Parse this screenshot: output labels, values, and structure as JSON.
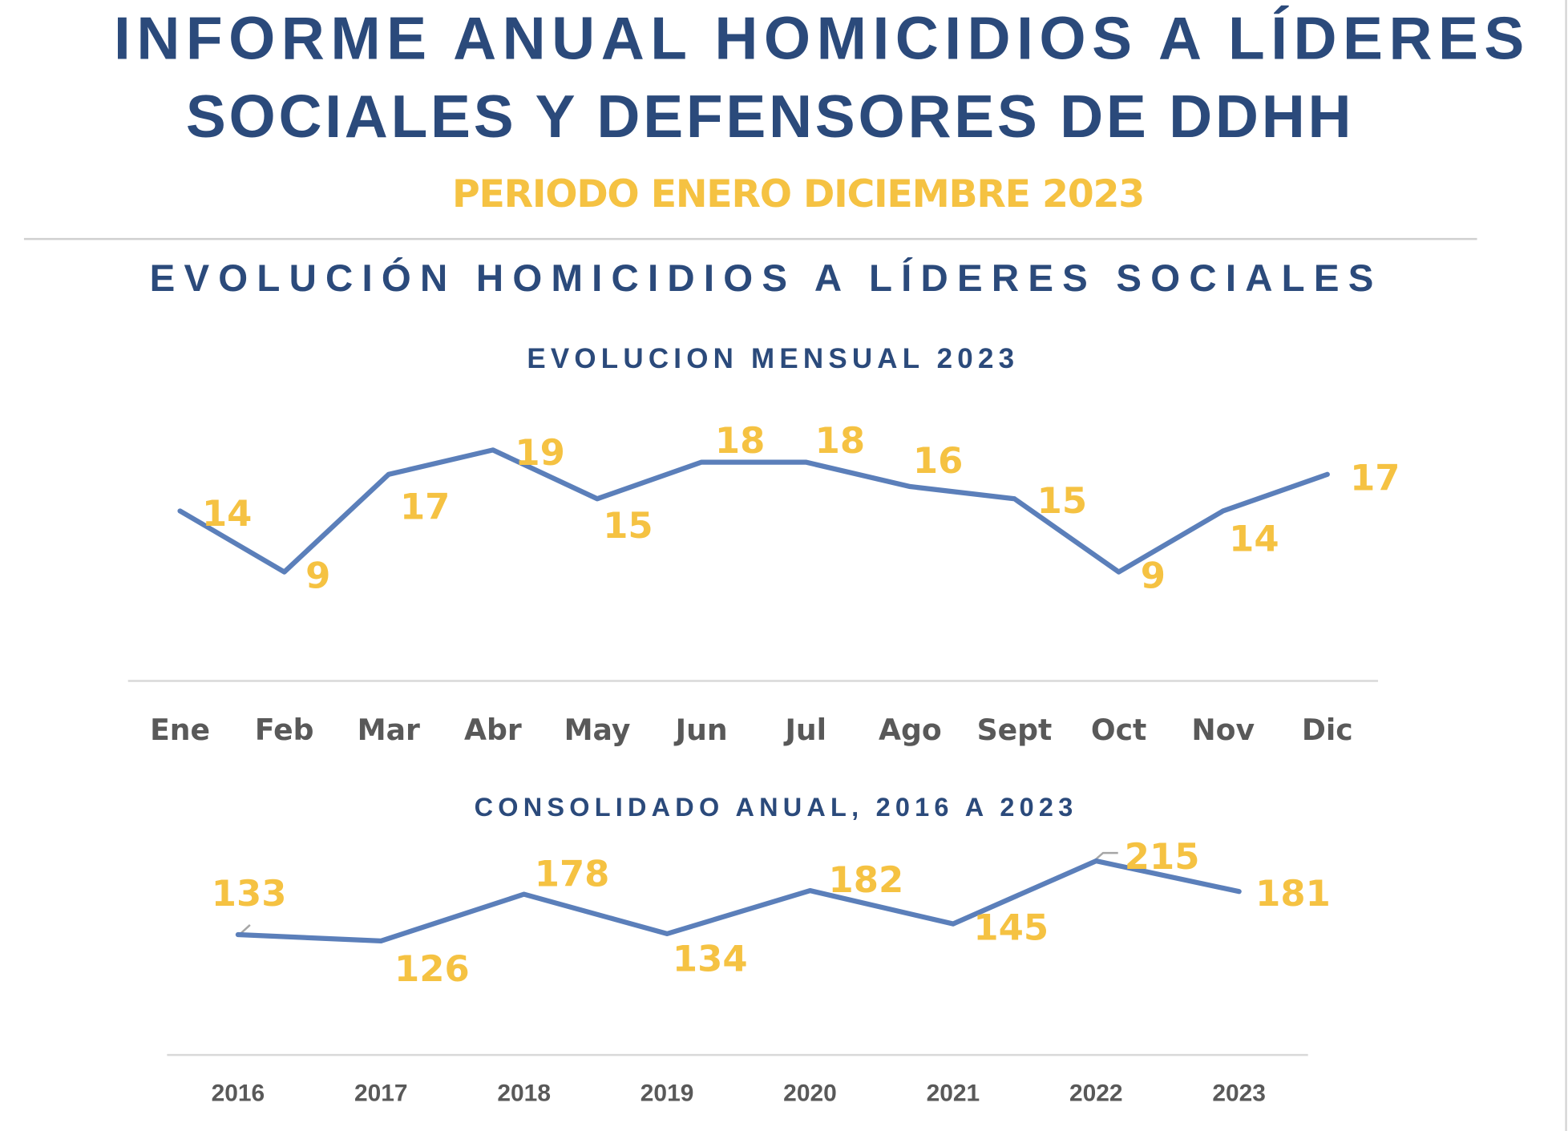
{
  "header": {
    "title_line1": "INFORME ANUAL HOMICIDIOS A LÍDERES",
    "title_line2": "SOCIALES Y DEFENSORES DE DDHH",
    "subtitle": "PERIODO ENERO DICIEMBRE 2023",
    "section_title": "EVOLUCIÓN HOMICIDIOS A LÍDERES SOCIALES"
  },
  "colors": {
    "title": "#2b4a7b",
    "accent": "#f5c242",
    "line": "#5b7fba",
    "axis_text": "#595959"
  },
  "chart_data": [
    {
      "type": "line",
      "title": "EVOLUCION MENSUAL 2023",
      "categories": [
        "Ene",
        "Feb",
        "Mar",
        "Abr",
        "May",
        "Jun",
        "Jul",
        "Ago",
        "Sept",
        "Oct",
        "Nov",
        "Dic"
      ],
      "values": [
        14,
        9,
        17,
        19,
        15,
        18,
        18,
        16,
        15,
        9,
        14,
        17
      ],
      "data_labels": true,
      "grid": false,
      "legend": "none"
    },
    {
      "type": "line",
      "title": "CONSOLIDADO ANUAL, 2016 A 2023",
      "categories": [
        "2016",
        "2017",
        "2018",
        "2019",
        "2020",
        "2021",
        "2022",
        "2023"
      ],
      "values": [
        133,
        126,
        178,
        134,
        182,
        145,
        215,
        181
      ],
      "data_labels": true,
      "grid": false,
      "legend": "none"
    }
  ]
}
